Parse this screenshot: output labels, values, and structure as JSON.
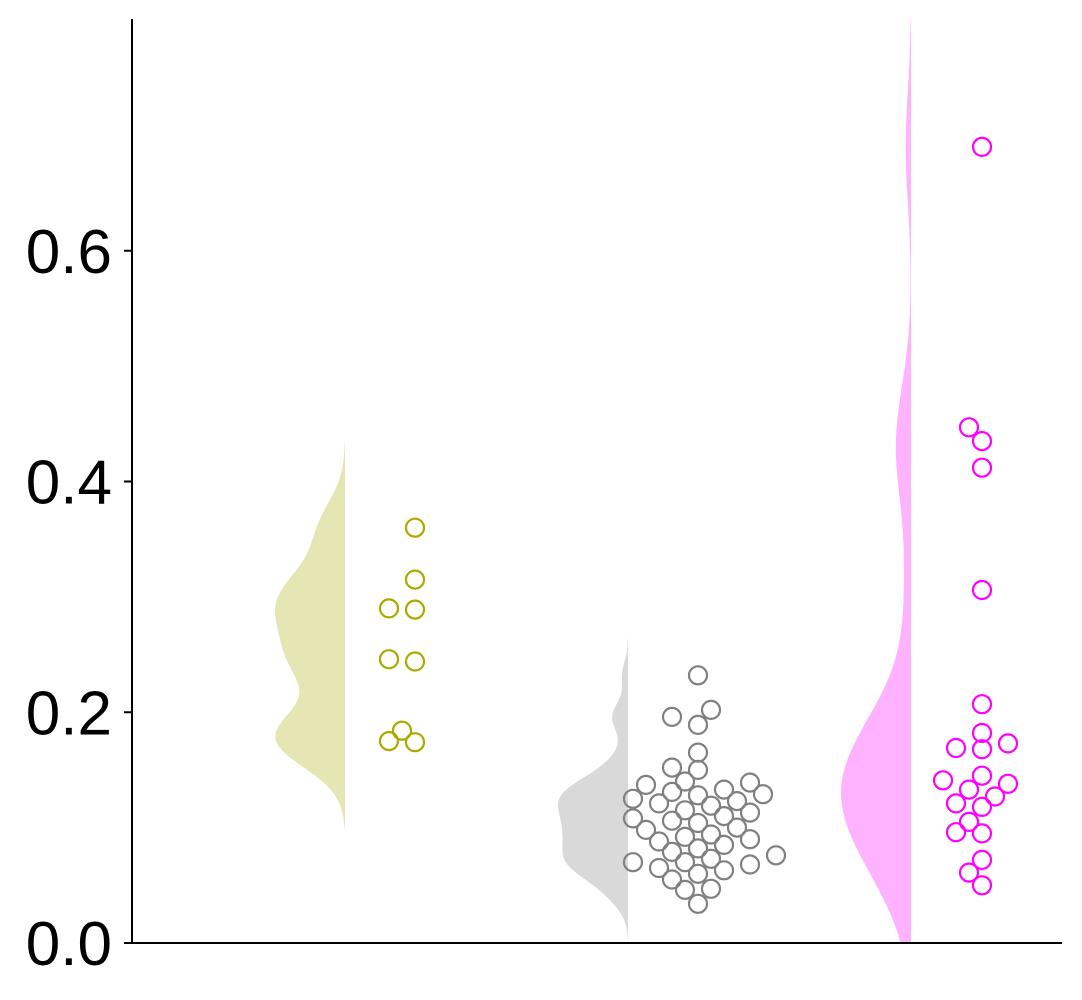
{
  "chart_data": {
    "type": "scatter",
    "title": "",
    "xlabel": "",
    "ylabel": "",
    "ylim": [
      0.0,
      0.8
    ],
    "yticks": [
      {
        "value": 0.0,
        "label": "0.0"
      },
      {
        "value": 0.2,
        "label": "0.2"
      },
      {
        "value": 0.4,
        "label": "0.4"
      },
      {
        "value": 0.6,
        "label": "0.6"
      }
    ],
    "grid": false,
    "legend": "none",
    "series": [
      {
        "color": "#aaaa00",
        "fill_color": "#e5e6b3",
        "values": [
          0.36,
          0.315,
          0.29,
          0.289,
          0.246,
          0.244,
          0.184,
          0.175,
          0.174
        ]
      },
      {
        "color": "#808080",
        "fill_color": "#d9d9d9",
        "values": [
          0.232,
          0.202,
          0.196,
          0.189,
          0.165,
          0.152,
          0.15,
          0.14,
          0.139,
          0.137,
          0.133,
          0.131,
          0.129,
          0.128,
          0.125,
          0.123,
          0.121,
          0.119,
          0.115,
          0.113,
          0.11,
          0.108,
          0.106,
          0.104,
          0.1,
          0.098,
          0.094,
          0.092,
          0.09,
          0.088,
          0.085,
          0.082,
          0.079,
          0.076,
          0.073,
          0.07,
          0.07,
          0.068,
          0.065,
          0.063,
          0.06,
          0.055,
          0.047,
          0.046,
          0.034
        ]
      },
      {
        "color": "#ff00ff",
        "fill_color": "#ffb3ff",
        "values": [
          0.69,
          0.447,
          0.435,
          0.412,
          0.306,
          0.207,
          0.182,
          0.173,
          0.169,
          0.168,
          0.145,
          0.141,
          0.138,
          0.133,
          0.127,
          0.121,
          0.118,
          0.105,
          0.096,
          0.095,
          0.072,
          0.061,
          0.05
        ]
      }
    ]
  }
}
